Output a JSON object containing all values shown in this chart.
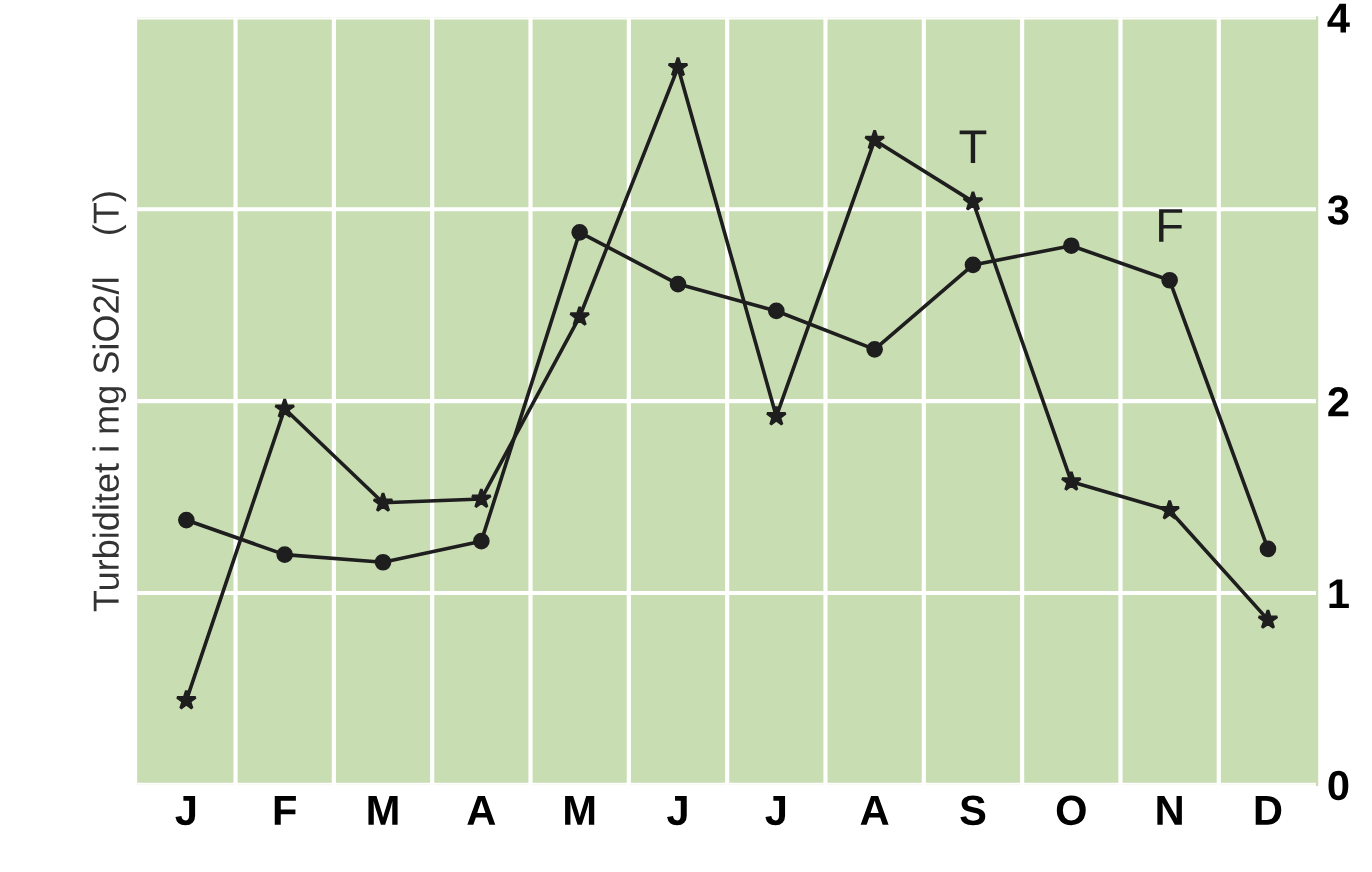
{
  "chart_data": {
    "type": "line",
    "ylabel": "Turbiditet i mg SiO2/l    (T)",
    "categories": [
      "J",
      "F",
      "M",
      "A",
      "M",
      "J",
      "J",
      "A",
      "S",
      "O",
      "N",
      "D"
    ],
    "series": [
      {
        "name": "T",
        "color": "#1e1e1e",
        "marker": "star",
        "values": [
          0.44,
          1.96,
          1.47,
          1.49,
          2.44,
          3.74,
          1.92,
          3.36,
          3.04,
          1.58,
          1.43,
          0.86
        ]
      },
      {
        "name": "F",
        "color": "#1e1e1e",
        "marker": "circle",
        "values": [
          1.38,
          1.2,
          1.16,
          1.27,
          2.88,
          2.61,
          2.47,
          2.27,
          2.71,
          2.81,
          2.63,
          1.23
        ]
      }
    ],
    "ylim": [
      0,
      4
    ],
    "yticks": [
      0,
      1,
      2,
      3,
      4
    ],
    "grid": true,
    "legend": false,
    "line_style": "solid"
  }
}
